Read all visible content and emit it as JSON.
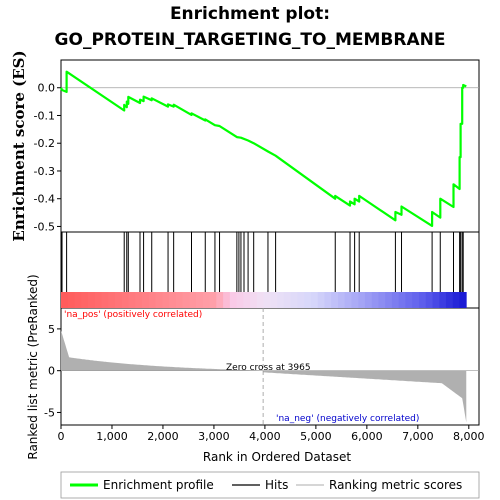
{
  "title_line1": "Enrichment plot:",
  "title_line2": "GO_PROTEIN_TARGETING_TO_MEMBRANE",
  "colors": {
    "es_line": "#00ff00",
    "hit": "#000000",
    "metric_fill": "#b0b0b0",
    "pos_label": "#ff0000",
    "neg_label": "#0000cc",
    "zero_line": "#a0a0a0"
  },
  "chart_data": {
    "type": "line",
    "ylabel_top": "Enrichment score (ES)",
    "ylabel_bottom": "Ranked list metric (PreRanked)",
    "xlabel": "Rank in Ordered Dataset",
    "xlim": [
      0,
      8200
    ],
    "es_ylim": [
      -0.52,
      0.1
    ],
    "es_yticks": [
      0.0,
      -0.1,
      -0.2,
      -0.3,
      -0.4,
      -0.5
    ],
    "metric_ylim": [
      -6.5,
      7.5
    ],
    "metric_yticks": [
      5,
      0,
      -5
    ],
    "xticks": [
      0,
      1000,
      2000,
      3000,
      4000,
      5000,
      6000,
      7000,
      8000
    ],
    "n_genes": 7950,
    "zero_cross": 3965,
    "zero_cross_label": "Zero cross at 3965",
    "pos_label": "'na_pos' (positively correlated)",
    "neg_label": "'na_neg' (negatively correlated)",
    "hits": [
      20,
      110,
      1240,
      1290,
      1320,
      1550,
      1620,
      1780,
      2100,
      2210,
      2560,
      2830,
      3020,
      3110,
      3450,
      3490,
      3530,
      3590,
      3670,
      3780,
      4060,
      4210,
      5380,
      5670,
      5760,
      5850,
      6560,
      6680,
      7280,
      7440,
      7700,
      7820,
      7840,
      7870,
      7890
    ],
    "es_points": [
      [
        0,
        0.0
      ],
      [
        20,
        -0.008
      ],
      [
        110,
        -0.015
      ],
      [
        110,
        0.058
      ],
      [
        1240,
        -0.082
      ],
      [
        1240,
        -0.062
      ],
      [
        1290,
        -0.07
      ],
      [
        1290,
        -0.05
      ],
      [
        1320,
        -0.058
      ],
      [
        1320,
        -0.033
      ],
      [
        1550,
        -0.055
      ],
      [
        1550,
        -0.043
      ],
      [
        1620,
        -0.048
      ],
      [
        1620,
        -0.032
      ],
      [
        1780,
        -0.045
      ],
      [
        1780,
        -0.038
      ],
      [
        2100,
        -0.068
      ],
      [
        2100,
        -0.06
      ],
      [
        2210,
        -0.068
      ],
      [
        2210,
        -0.061
      ],
      [
        2560,
        -0.098
      ],
      [
        2560,
        -0.092
      ],
      [
        2830,
        -0.118
      ],
      [
        2830,
        -0.114
      ],
      [
        3020,
        -0.135
      ],
      [
        3110,
        -0.138
      ],
      [
        3450,
        -0.178
      ],
      [
        3530,
        -0.18
      ],
      [
        3670,
        -0.19
      ],
      [
        3780,
        -0.2
      ],
      [
        4060,
        -0.23
      ],
      [
        4210,
        -0.245
      ],
      [
        5380,
        -0.4
      ],
      [
        5380,
        -0.39
      ],
      [
        5670,
        -0.425
      ],
      [
        5670,
        -0.41
      ],
      [
        5760,
        -0.42
      ],
      [
        5760,
        -0.4
      ],
      [
        5850,
        -0.41
      ],
      [
        5850,
        -0.39
      ],
      [
        6560,
        -0.478
      ],
      [
        6560,
        -0.448
      ],
      [
        6680,
        -0.458
      ],
      [
        6680,
        -0.428
      ],
      [
        7280,
        -0.498
      ],
      [
        7280,
        -0.448
      ],
      [
        7440,
        -0.468
      ],
      [
        7440,
        -0.4
      ],
      [
        7700,
        -0.43
      ],
      [
        7700,
        -0.348
      ],
      [
        7820,
        -0.365
      ],
      [
        7820,
        -0.25
      ],
      [
        7840,
        -0.25
      ],
      [
        7840,
        -0.13
      ],
      [
        7870,
        -0.13
      ],
      [
        7870,
        0.0
      ],
      [
        7890,
        0.0
      ],
      [
        7890,
        0.01
      ],
      [
        7950,
        0.005
      ]
    ]
  },
  "legend": {
    "items": [
      {
        "label": "Enrichment profile",
        "color": "#00ff00",
        "style": "thick"
      },
      {
        "label": "Hits",
        "color": "#606060",
        "style": "medium"
      },
      {
        "label": "Ranking metric scores",
        "color": "#c8c8c8",
        "style": "thin"
      }
    ]
  }
}
